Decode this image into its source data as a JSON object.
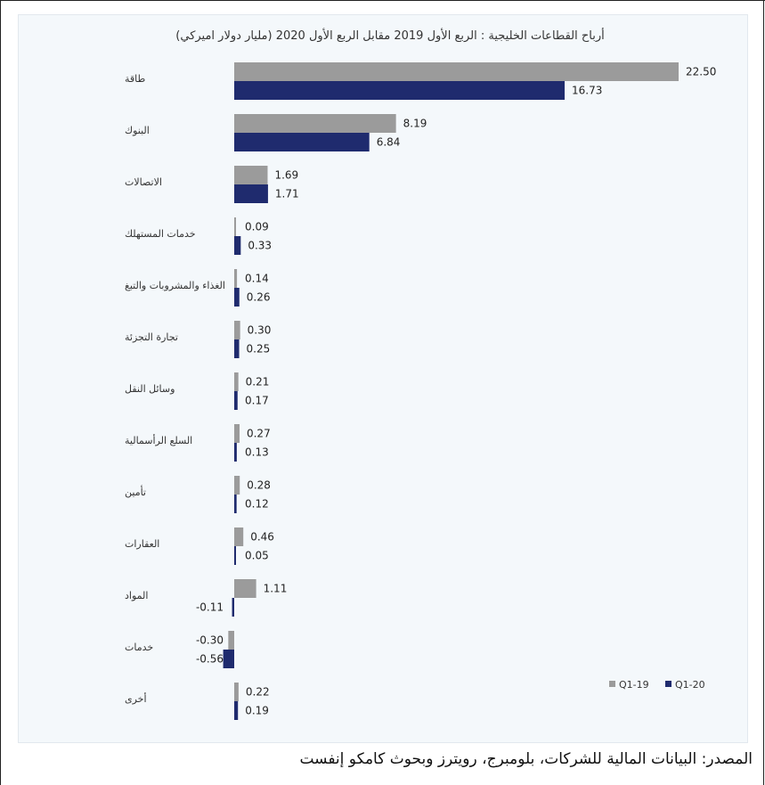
{
  "chart_data": {
    "type": "bar",
    "orientation": "horizontal",
    "title": "أرباح القطاعات الخليجية : الربع الأول 2019 مقابل الربع الأول 2020 (مليار دولار اميركي)",
    "categories": [
      "طاقة",
      "البنوك",
      "الاتصالات",
      "خدمات المستهلك",
      "الغذاء والمشروبات والتبغ",
      "تجارة التجزئة",
      "وسائل النقل",
      "السلع الرأسمالية",
      "تأمين",
      "العقارات",
      "المواد",
      "خدمات",
      "أخرى"
    ],
    "series": [
      {
        "name": "Q1-19",
        "color": "#9b9b9b",
        "values": [
          22.5,
          8.19,
          1.69,
          0.09,
          0.14,
          0.3,
          0.21,
          0.27,
          0.28,
          0.46,
          1.11,
          -0.3,
          0.22
        ],
        "labels": [
          "22.50",
          "8.19",
          "1.69",
          "0.09",
          "0.14",
          "0.30",
          "0.21",
          "0.27",
          "0.28",
          "0.46",
          "1.11",
          "-0.30",
          "0.22"
        ]
      },
      {
        "name": "Q1-20",
        "color": "#1f2b6e",
        "values": [
          16.73,
          6.84,
          1.71,
          0.33,
          0.26,
          0.25,
          0.17,
          0.13,
          0.12,
          0.05,
          -0.11,
          -0.56,
          0.19
        ],
        "labels": [
          "16.73",
          "6.84",
          "1.71",
          "0.33",
          "0.26",
          "0.25",
          "0.17",
          "0.13",
          "0.12",
          "0.05",
          "-0.11",
          "-0.56",
          "0.19"
        ]
      }
    ],
    "legend_position": "bottom-right",
    "legend_order": [
      "Q1-19",
      "Q1-20"
    ],
    "gridlines": false
  },
  "source_note": "المصدر: البيانات المالية للشركات، بلومبرج، رويترز وبحوث كامكو إنفست"
}
